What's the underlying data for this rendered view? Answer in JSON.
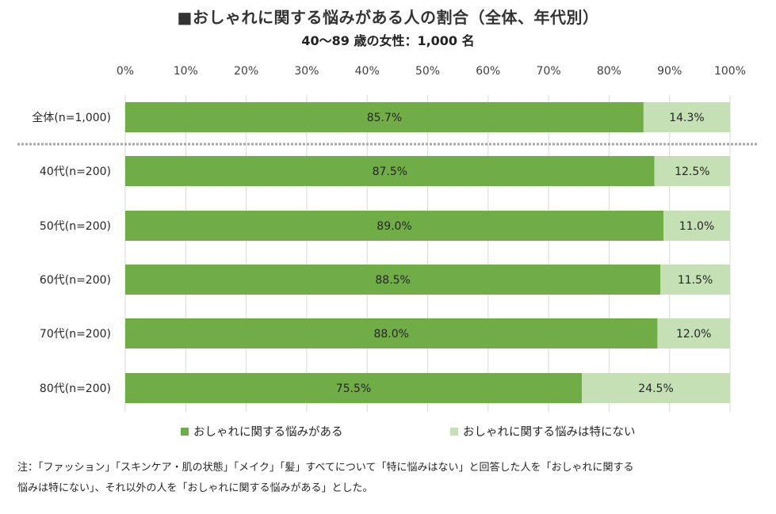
{
  "title": "■おしゃれに関する悩みがある人の割合（全体、年代別）",
  "subtitle": "40～89 歳の女性：1,000 名",
  "colors": {
    "has_concern": "#70AD47",
    "no_concern": "#C5E0B4",
    "grid": "#D9D9D9",
    "separator": "#A6A6A6"
  },
  "chart_data": {
    "type": "bar",
    "orientation": "horizontal",
    "stacked": true,
    "x_ticks": [
      "0%",
      "10%",
      "20%",
      "30%",
      "40%",
      "50%",
      "60%",
      "70%",
      "80%",
      "90%",
      "100%"
    ],
    "xlim": [
      0,
      100
    ],
    "categories": [
      "全体(n=1,000)",
      "40代(n=200)",
      "50代(n=200)",
      "60代(n=200)",
      "70代(n=200)",
      "80代(n=200)"
    ],
    "series": [
      {
        "name": "おしゃれに関する悩みがある",
        "values": [
          85.7,
          87.5,
          89.0,
          88.5,
          88.0,
          75.5
        ],
        "labels": [
          "85.7%",
          "87.5%",
          "89.0%",
          "88.5%",
          "88.0%",
          "75.5%"
        ]
      },
      {
        "name": "おしゃれに関する悩みは特にない",
        "values": [
          14.3,
          12.5,
          11.0,
          11.5,
          12.0,
          24.5
        ],
        "labels": [
          "14.3%",
          "12.5%",
          "11.0%",
          "11.5%",
          "12.0%",
          "24.5%"
        ]
      }
    ],
    "legend_position": "bottom",
    "grid": true
  },
  "note": {
    "line1": "注：「ファッション」「スキンケア・肌の状態」「メイク」「髪」すべてについて「特に悩みはない」と回答した人を「おしゃれに関する",
    "line2": "悩みは特にない」、それ以外の人を「おしゃれに関する悩みがある」とした。"
  }
}
